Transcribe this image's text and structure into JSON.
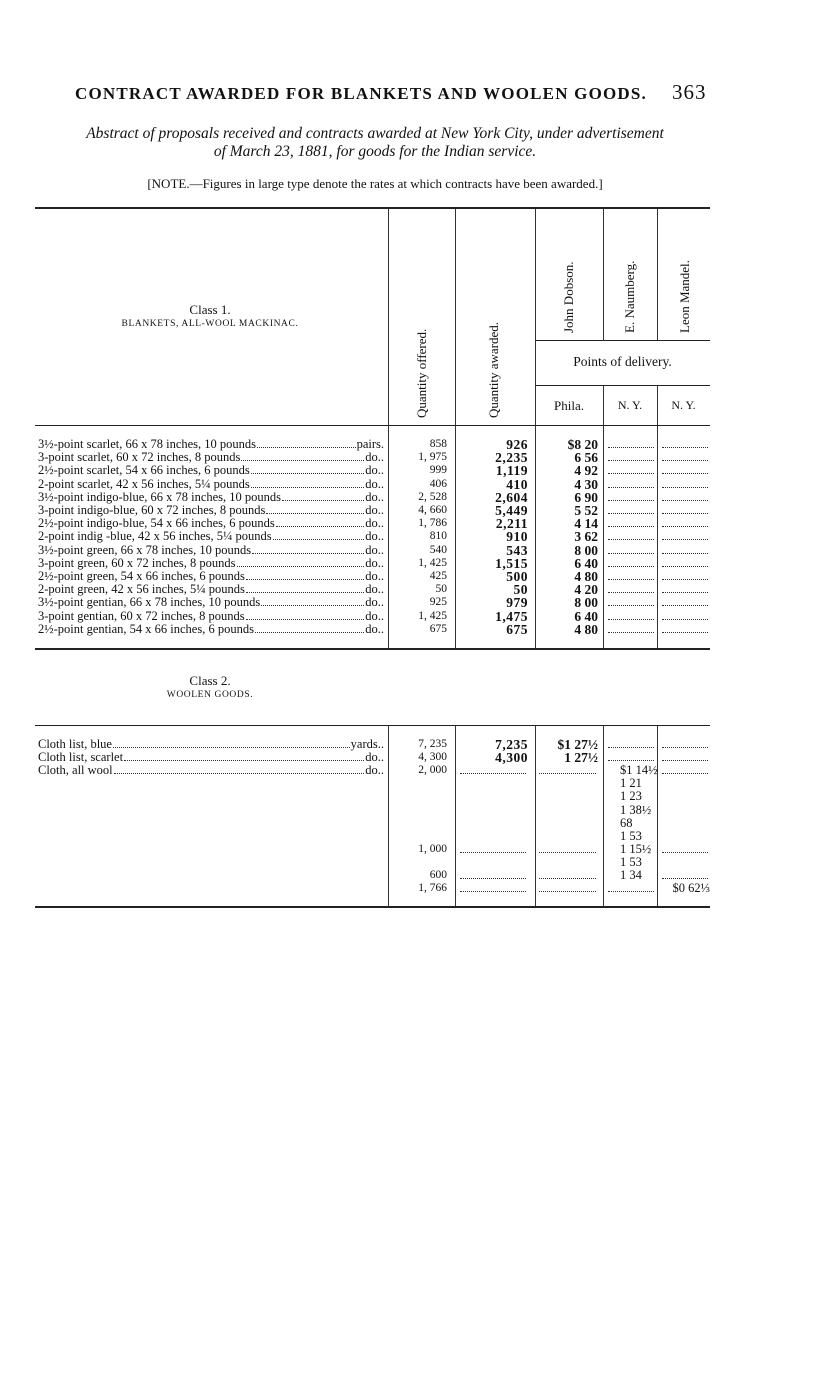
{
  "running_head": {
    "title": "CONTRACT AWARDED FOR BLANKETS AND WOOLEN GOODS.",
    "page_number": "363"
  },
  "subtitle_line1": "Abstract of proposals received and contracts awarded at New York City, under advertisement",
  "subtitle_line2": "of March 23, 1881, for goods for the Indian service.",
  "note": "[NOTE.—Figures in large type denote the rates at which contracts have been awarded.]",
  "headers": {
    "quantity_offered": "Quantity offered.",
    "quantity_awarded": "Quantity awarded.",
    "bidders": [
      "John Dobson.",
      "E. Naumberg.",
      "Leon Mandel."
    ],
    "points_of_delivery": "Points of delivery.",
    "delivery": [
      "Phila.",
      "N. Y.",
      "N. Y."
    ]
  },
  "class1": {
    "title": "Class 1.",
    "subtitle": "BLANKETS, ALL-WOOL MACKINAC."
  },
  "class2": {
    "title": "Class 2.",
    "subtitle": "WOOLEN GOODS."
  },
  "blankets": [
    {
      "item": "3½-point scarlet, 66 x 78 inches, 10 pounds",
      "unit": "pairs.",
      "offered": "858",
      "awarded": "926",
      "phila": "$8 20"
    },
    {
      "item": "3-point scarlet, 60 x 72 inches, 8 pounds",
      "unit": "do..",
      "offered": "1, 975",
      "awarded": "2,235",
      "phila": "6 56"
    },
    {
      "item": "2½-point scarlet, 54 x 66 inches, 6 pounds",
      "unit": "do..",
      "offered": "999",
      "awarded": "1,119",
      "phila": "4 92"
    },
    {
      "item": "2-point scarlet, 42 x 56 inches, 5¼ pounds",
      "unit": "do..",
      "offered": "406",
      "awarded": "410",
      "phila": "4 30"
    },
    {
      "item": "3½-point indigo-blue, 66 x 78 inches, 10 pounds",
      "unit": "do..",
      "offered": "2, 528",
      "awarded": "2,604",
      "phila": "6 90"
    },
    {
      "item": "3-point indigo-blue, 60 x 72 inches, 8 pounds",
      "unit": "do..",
      "offered": "4, 660",
      "awarded": "5,449",
      "phila": "5 52"
    },
    {
      "item": "2½-point indigo-blue, 54 x 66 inches, 6 pounds",
      "unit": "do..",
      "offered": "1, 786",
      "awarded": "2,211",
      "phila": "4 14"
    },
    {
      "item": "2-point indig -blue, 42 x 56 inches, 5¼ pounds",
      "unit": "do..",
      "offered": "810",
      "awarded": "910",
      "phila": "3 62"
    },
    {
      "item": "3½-point green, 66 x 78 inches, 10 pounds",
      "unit": "do..",
      "offered": "540",
      "awarded": "543",
      "phila": "8 00"
    },
    {
      "item": "3-point green, 60 x 72 inches, 8 pounds",
      "unit": "do..",
      "offered": "1, 425",
      "awarded": "1,515",
      "phila": "6 40"
    },
    {
      "item": "2½-point green, 54 x 66 inches, 6 pounds",
      "unit": "do..",
      "offered": "425",
      "awarded": "500",
      "phila": "4 80"
    },
    {
      "item": "2-point green, 42 x 56 inches, 5¼ pounds",
      "unit": "do..",
      "offered": "50",
      "awarded": "50",
      "phila": "4 20"
    },
    {
      "item": "3½-point gentian, 66 x 78 inches, 10 pounds",
      "unit": "do..",
      "offered": "925",
      "awarded": "979",
      "phila": "8 00"
    },
    {
      "item": "3-point gentian, 60 x 72 inches, 8 pounds",
      "unit": "do..",
      "offered": "1, 425",
      "awarded": "1,475",
      "phila": "6 40"
    },
    {
      "item": "2½-point gentian, 54 x 66 inches, 6 pounds",
      "unit": "do..",
      "offered": "675",
      "awarded": "675",
      "phila": "4 80"
    }
  ],
  "woolen": [
    {
      "item": "Cloth list, blue",
      "unit": "yards..",
      "offered": "7, 235",
      "awarded": "7,235",
      "phila": "$1 27½",
      "ny1": "",
      "ny2": "",
      "leaders": [
        "ny1",
        "ny2"
      ]
    },
    {
      "item": "Cloth list, scarlet",
      "unit": "do..",
      "offered": "4, 300",
      "awarded": "4,300",
      "phila": "1 27½",
      "ny1": "",
      "ny2": "",
      "leaders": [
        "ny1",
        "ny2"
      ]
    },
    {
      "item": "Cloth, all wool",
      "unit": "do..",
      "offered": "2, 000",
      "awarded": "",
      "phila": "",
      "ny1": "$1 14½",
      "ny2": "",
      "leaders": [
        "awarded",
        "phila",
        "ny2"
      ]
    },
    {
      "item": "",
      "unit": "",
      "offered": "",
      "awarded": "",
      "phila": "",
      "ny1": "1 21",
      "ny2": "",
      "leaders": []
    },
    {
      "item": "",
      "unit": "",
      "offered": "",
      "awarded": "",
      "phila": "",
      "ny1": "1 23",
      "ny2": "",
      "leaders": []
    },
    {
      "item": "",
      "unit": "",
      "offered": "",
      "awarded": "",
      "phila": "",
      "ny1": "1 38½",
      "ny2": "",
      "leaders": []
    },
    {
      "item": "",
      "unit": "",
      "offered": "",
      "awarded": "",
      "phila": "",
      "ny1": "68",
      "ny2": "",
      "leaders": []
    },
    {
      "item": "",
      "unit": "",
      "offered": "",
      "awarded": "",
      "phila": "",
      "ny1": "1 53",
      "ny2": "",
      "leaders": []
    },
    {
      "item": "",
      "unit": "",
      "offered": "1, 000",
      "awarded": "",
      "phila": "",
      "ny1": "1 15½",
      "ny2": "",
      "leaders": [
        "awarded",
        "phila",
        "ny2"
      ]
    },
    {
      "item": "",
      "unit": "",
      "offered": "",
      "awarded": "",
      "phila": "",
      "ny1": "1 53",
      "ny2": "",
      "leaders": []
    },
    {
      "item": "",
      "unit": "",
      "offered": "600",
      "awarded": "",
      "phila": "",
      "ny1": "1 34",
      "ny2": "",
      "leaders": [
        "awarded",
        "phila",
        "ny2"
      ]
    },
    {
      "item": "",
      "unit": "",
      "offered": "1, 766",
      "awarded": "",
      "phila": "",
      "ny1": "",
      "ny2": "$0 62⅓",
      "leaders": [
        "awarded",
        "phila",
        "ny1"
      ]
    }
  ]
}
